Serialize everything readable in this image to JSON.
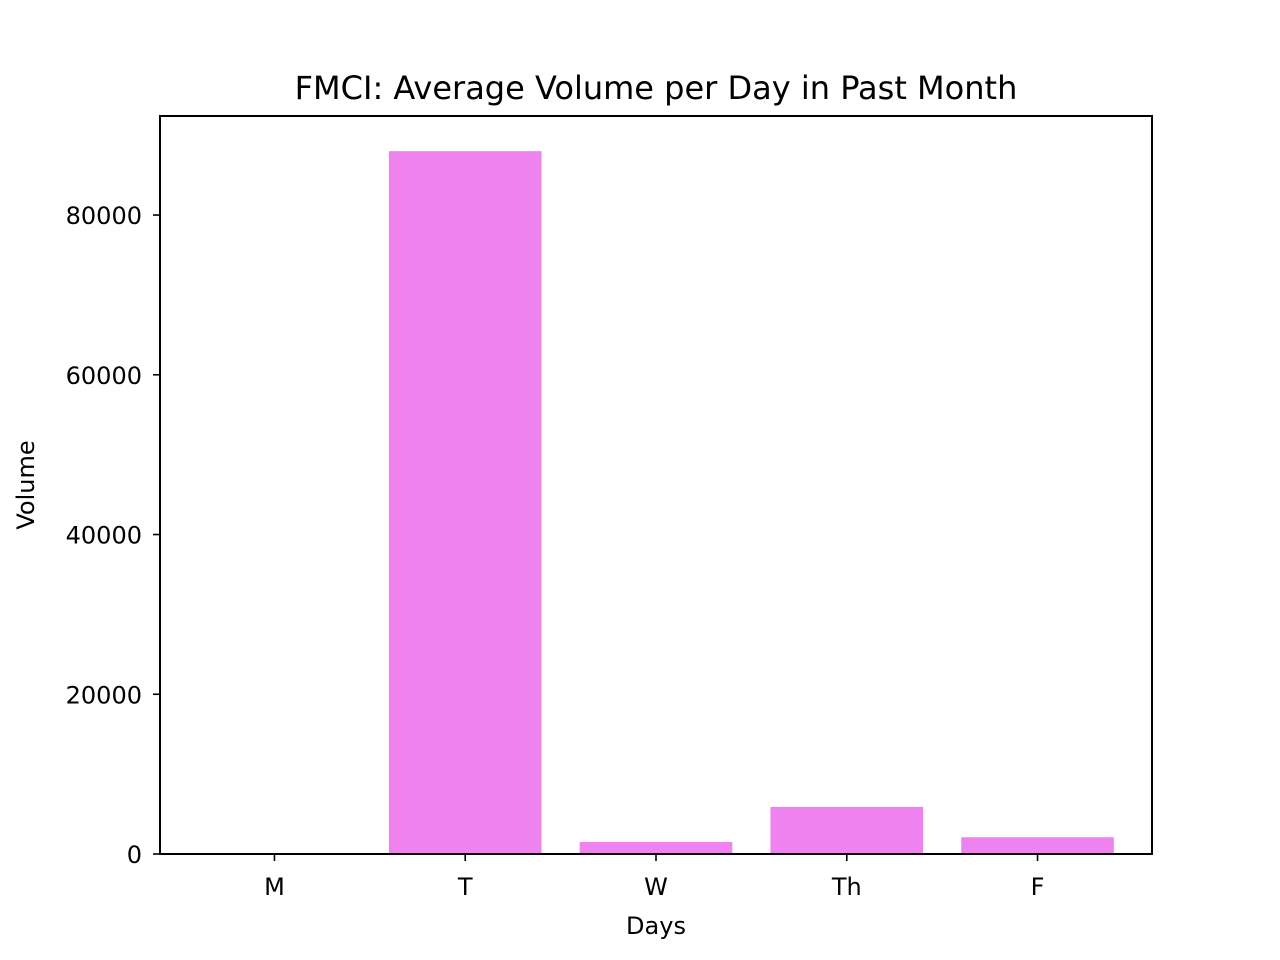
{
  "chart_data": {
    "type": "bar",
    "title": "FMCI: Average Volume per Day in Past Month",
    "xlabel": "Days",
    "ylabel": "Volume",
    "categories": [
      "M",
      "T",
      "W",
      "Th",
      "F"
    ],
    "values": [
      0,
      88000,
      1500,
      5900,
      2100
    ],
    "ylim": [
      0,
      92400
    ],
    "yticks": [
      0,
      20000,
      40000,
      60000,
      80000
    ],
    "bar_color": "#ee82ee",
    "grid": false,
    "legend": "none"
  }
}
